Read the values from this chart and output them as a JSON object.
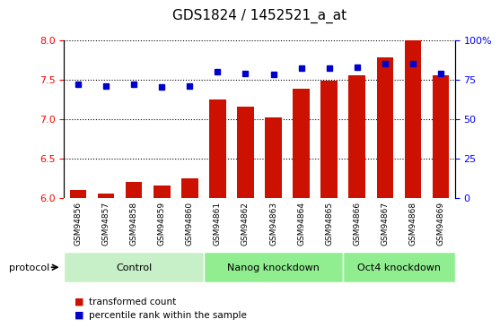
{
  "title": "GDS1824 / 1452521_a_at",
  "samples": [
    "GSM94856",
    "GSM94857",
    "GSM94858",
    "GSM94859",
    "GSM94860",
    "GSM94861",
    "GSM94862",
    "GSM94863",
    "GSM94864",
    "GSM94865",
    "GSM94866",
    "GSM94867",
    "GSM94868",
    "GSM94869"
  ],
  "bar_values": [
    6.1,
    6.05,
    6.2,
    6.15,
    6.25,
    7.25,
    7.15,
    7.02,
    7.38,
    7.48,
    7.55,
    7.78,
    8.0,
    7.55
  ],
  "dot_values": [
    72,
    71,
    72,
    70,
    71,
    80,
    79,
    78,
    82,
    82,
    83,
    85,
    85,
    79
  ],
  "ylim_left": [
    6.0,
    8.0
  ],
  "ylim_right": [
    0,
    100
  ],
  "yticks_left": [
    6.0,
    6.5,
    7.0,
    7.5,
    8.0
  ],
  "yticks_right": [
    0,
    25,
    50,
    75,
    100
  ],
  "bar_color": "#cc1100",
  "dot_color": "#0000cc",
  "group_data": [
    {
      "label": "Control",
      "start": 0,
      "end": 4,
      "color": "#c8f0c8"
    },
    {
      "label": "Nanog knockdown",
      "start": 5,
      "end": 9,
      "color": "#90ee90"
    },
    {
      "label": "Oct4 knockdown",
      "start": 10,
      "end": 13,
      "color": "#90ee90"
    }
  ],
  "tick_bg_color": "#d0d0d0",
  "background_color": "#ffffff",
  "legend_bar_label": "transformed count",
  "legend_dot_label": "percentile rank within the sample",
  "protocol_label": "protocol",
  "title_fontsize": 11,
  "ytick_fontsize": 8,
  "xtick_fontsize": 6.5,
  "legend_fontsize": 7.5,
  "group_label_fontsize": 8,
  "protocol_fontsize": 8
}
